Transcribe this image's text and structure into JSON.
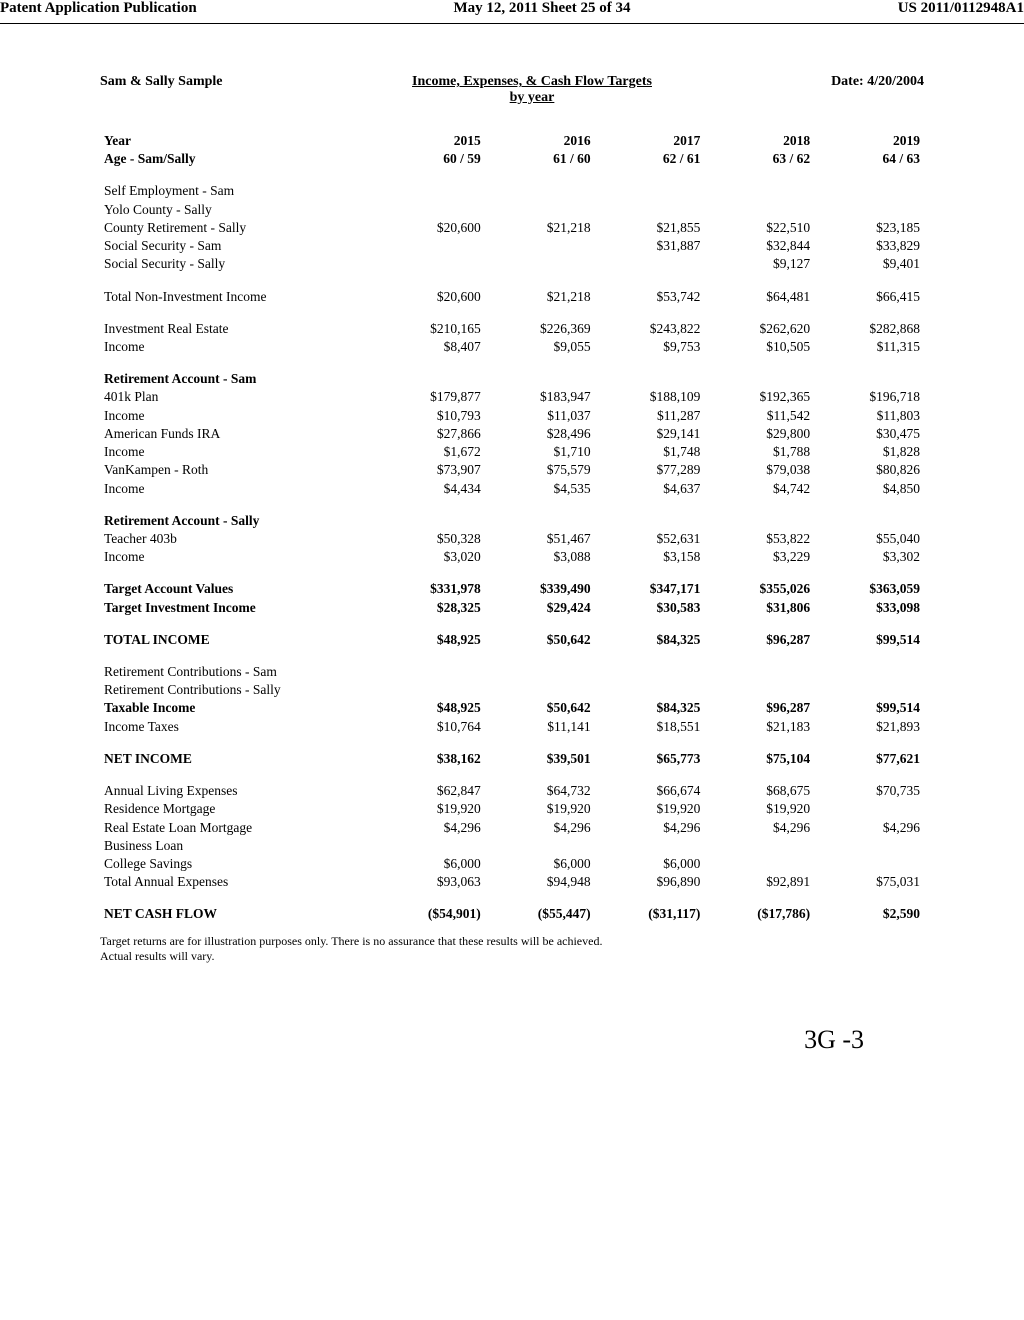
{
  "header": {
    "left": "Patent Application Publication",
    "center": "May 12, 2011  Sheet 25 of 34",
    "right": "US 2011/0112948A1"
  },
  "report": {
    "client": "Sam & Sally Sample",
    "title": "Income, Expenses, & Cash Flow Targets",
    "subtitle": "by year",
    "date_label": "Date: 4/20/2004",
    "year_label": "Year",
    "age_label": "Age - Sam/Sally",
    "years": [
      "2015",
      "2016",
      "2017",
      "2018",
      "2019"
    ],
    "ages": [
      "60 / 59",
      "61 / 60",
      "62 / 61",
      "63 / 62",
      "64 / 63"
    ],
    "rows": [
      {
        "label": "Self Employment - Sam",
        "vals": [
          "",
          "",
          "",
          "",
          ""
        ]
      },
      {
        "label": "Yolo County - Sally",
        "vals": [
          "",
          "",
          "",
          "",
          ""
        ]
      },
      {
        "label": "County Retirement - Sally",
        "vals": [
          "$20,600",
          "$21,218",
          "$21,855",
          "$22,510",
          "$23,185"
        ]
      },
      {
        "label": "Social Security - Sam",
        "vals": [
          "",
          "",
          "$31,887",
          "$32,844",
          "$33,829"
        ]
      },
      {
        "label": "Social Security - Sally",
        "vals": [
          "",
          "",
          "",
          "$9,127",
          "$9,401"
        ]
      }
    ],
    "total_noninv": {
      "label": "Total Non-Investment Income",
      "vals": [
        "$20,600",
        "$21,218",
        "$53,742",
        "$64,481",
        "$66,415"
      ]
    },
    "inv_re": {
      "label": "Investment Real Estate",
      "vals": [
        "$210,165",
        "$226,369",
        "$243,822",
        "$262,620",
        "$282,868"
      ]
    },
    "inv_re_inc": {
      "label": "Income",
      "vals": [
        "$8,407",
        "$9,055",
        "$9,753",
        "$10,505",
        "$11,315"
      ]
    },
    "ret_sam_hdr": "Retirement Account - Sam",
    "ret_sam": [
      {
        "label": "401k Plan",
        "vals": [
          "$179,877",
          "$183,947",
          "$188,109",
          "$192,365",
          "$196,718"
        ]
      },
      {
        "label": "Income",
        "indent": true,
        "vals": [
          "$10,793",
          "$11,037",
          "$11,287",
          "$11,542",
          "$11,803"
        ]
      },
      {
        "label": "American Funds IRA",
        "vals": [
          "$27,866",
          "$28,496",
          "$29,141",
          "$29,800",
          "$30,475"
        ]
      },
      {
        "label": "Income",
        "indent": true,
        "vals": [
          "$1,672",
          "$1,710",
          "$1,748",
          "$1,788",
          "$1,828"
        ]
      },
      {
        "label": "VanKampen - Roth",
        "vals": [
          "$73,907",
          "$75,579",
          "$77,289",
          "$79,038",
          "$80,826"
        ]
      },
      {
        "label": "Income",
        "indent": true,
        "vals": [
          "$4,434",
          "$4,535",
          "$4,637",
          "$4,742",
          "$4,850"
        ]
      }
    ],
    "ret_sally_hdr": "Retirement Account - Sally",
    "ret_sally": [
      {
        "label": "Teacher 403b",
        "vals": [
          "$50,328",
          "$51,467",
          "$52,631",
          "$53,822",
          "$55,040"
        ]
      },
      {
        "label": "Income",
        "indent": true,
        "vals": [
          "$3,020",
          "$3,088",
          "$3,158",
          "$3,229",
          "$3,302"
        ]
      }
    ],
    "targets": [
      {
        "label": "Target Account Values",
        "bold": true,
        "vals": [
          "$331,978",
          "$339,490",
          "$347,171",
          "$355,026",
          "$363,059"
        ]
      },
      {
        "label": "Target Investment Income",
        "bold": true,
        "vals": [
          "$28,325",
          "$29,424",
          "$30,583",
          "$31,806",
          "$33,098"
        ]
      }
    ],
    "total_income": {
      "label": "TOTAL INCOME",
      "vals": [
        "$48,925",
        "$50,642",
        "$84,325",
        "$96,287",
        "$99,514"
      ]
    },
    "contrib": [
      {
        "label": "Retirement Contributions - Sam",
        "vals": [
          "",
          "",
          "",
          "",
          ""
        ]
      },
      {
        "label": "Retirement Contributions - Sally",
        "vals": [
          "",
          "",
          "",
          "",
          ""
        ]
      },
      {
        "label": "Taxable Income",
        "bold": true,
        "vals": [
          "$48,925",
          "$50,642",
          "$84,325",
          "$96,287",
          "$99,514"
        ]
      },
      {
        "label": "Income Taxes",
        "vals": [
          "$10,764",
          "$11,141",
          "$18,551",
          "$21,183",
          "$21,893"
        ]
      }
    ],
    "net_income": {
      "label": "NET INCOME",
      "vals": [
        "$38,162",
        "$39,501",
        "$65,773",
        "$75,104",
        "$77,621"
      ]
    },
    "expenses": [
      {
        "label": "Annual Living Expenses",
        "vals": [
          "$62,847",
          "$64,732",
          "$66,674",
          "$68,675",
          "$70,735"
        ]
      },
      {
        "label": "Residence Mortgage",
        "vals": [
          "$19,920",
          "$19,920",
          "$19,920",
          "$19,920",
          ""
        ]
      },
      {
        "label": "Real Estate Loan Mortgage",
        "vals": [
          "$4,296",
          "$4,296",
          "$4,296",
          "$4,296",
          "$4,296"
        ]
      },
      {
        "label": "Business Loan",
        "vals": [
          "",
          "",
          "",
          "",
          ""
        ]
      },
      {
        "label": "College Savings",
        "vals": [
          "$6,000",
          "$6,000",
          "$6,000",
          "",
          ""
        ]
      },
      {
        "label": "Total Annual Expenses",
        "vals": [
          "$93,063",
          "$94,948",
          "$96,890",
          "$92,891",
          "$75,031"
        ]
      }
    ],
    "net_cash": {
      "label": "NET CASH FLOW",
      "vals": [
        "($54,901)",
        "($55,447)",
        "($31,117)",
        "($17,786)",
        "$2,590"
      ]
    },
    "footer1": "Target returns are for illustration purposes only. There is no assurance that these results will be achieved.",
    "footer2": "Actual results will vary.",
    "fig": "3G -3"
  }
}
